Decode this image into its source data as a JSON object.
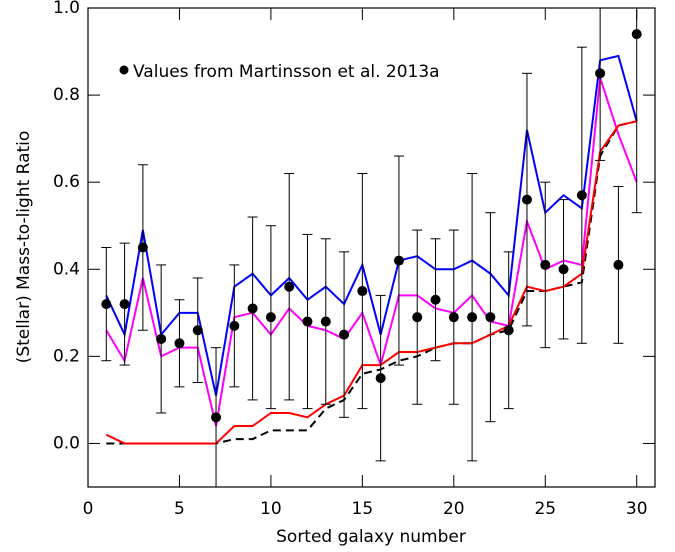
{
  "chart_data": {
    "type": "scatter",
    "xlabel": "Sorted galaxy number",
    "ylabel": "(Stellar) Mass-to-light Ratio",
    "xlim": [
      0,
      31
    ],
    "ylim": [
      -0.1,
      1.0
    ],
    "xticks": [
      0,
      5,
      10,
      15,
      20,
      25,
      30
    ],
    "yticks": [
      {
        "value": 0.0,
        "label": "0.0"
      },
      {
        "value": 0.2,
        "label": "0.2"
      },
      {
        "value": 0.4,
        "label": "0.4"
      },
      {
        "value": 0.6,
        "label": "0.6"
      },
      {
        "value": 0.8,
        "label": "0.8"
      },
      {
        "value": 1.0,
        "label": "1.0"
      }
    ],
    "x": [
      1,
      2,
      3,
      4,
      5,
      6,
      7,
      8,
      9,
      10,
      11,
      12,
      13,
      14,
      15,
      16,
      17,
      18,
      19,
      20,
      21,
      22,
      23,
      24,
      25,
      26,
      27,
      28,
      29,
      30
    ],
    "series": [
      {
        "name": "Values from Martinsson et al. 2013a",
        "color": "#000000",
        "values": [
          0.32,
          0.32,
          0.45,
          0.24,
          0.23,
          0.26,
          0.06,
          0.27,
          0.31,
          0.29,
          0.36,
          0.28,
          0.28,
          0.25,
          0.35,
          0.15,
          0.42,
          0.29,
          0.33,
          0.29,
          0.29,
          0.29,
          0.26,
          0.56,
          0.41,
          0.4,
          0.57,
          0.85,
          0.41,
          0.94
        ],
        "errors": [
          0.13,
          0.14,
          0.19,
          0.17,
          0.1,
          0.12,
          0.16,
          0.14,
          0.21,
          0.21,
          0.26,
          0.2,
          0.19,
          0.19,
          0.27,
          0.19,
          0.24,
          0.2,
          0.14,
          0.2,
          0.33,
          0.24,
          0.18,
          0.29,
          0.19,
          0.16,
          0.34,
          0.2,
          0.18,
          0.41
        ]
      }
    ],
    "lines": [
      {
        "color": "#0000ff",
        "dash": false,
        "values": [
          0.34,
          0.25,
          0.49,
          0.25,
          0.3,
          0.3,
          0.11,
          0.36,
          0.39,
          0.34,
          0.38,
          0.33,
          0.36,
          0.32,
          0.41,
          0.25,
          0.42,
          0.43,
          0.4,
          0.4,
          0.42,
          0.39,
          0.34,
          0.72,
          0.53,
          0.57,
          0.54,
          0.88,
          0.89,
          0.74
        ]
      },
      {
        "color": "#ff00ff",
        "dash": false,
        "values": [
          0.26,
          0.19,
          0.38,
          0.2,
          0.22,
          0.22,
          0.04,
          0.29,
          0.3,
          0.25,
          0.31,
          0.27,
          0.26,
          0.24,
          0.3,
          0.18,
          0.34,
          0.34,
          0.31,
          0.3,
          0.34,
          0.28,
          0.27,
          0.51,
          0.4,
          0.42,
          0.41,
          0.84,
          0.71,
          0.6
        ]
      },
      {
        "color": "#000000",
        "dash": true,
        "values": [
          0.0,
          0.0,
          0.0,
          0.0,
          0.0,
          0.0,
          0.0,
          0.01,
          0.01,
          0.03,
          0.03,
          0.03,
          0.08,
          0.1,
          0.16,
          0.17,
          0.19,
          0.2,
          0.22,
          0.23,
          0.23,
          0.25,
          0.26,
          0.35,
          0.35,
          0.36,
          0.37,
          0.66,
          0.73,
          0.74
        ]
      },
      {
        "color": "#ff0000",
        "dash": false,
        "values": [
          0.02,
          0.0,
          0.0,
          0.0,
          0.0,
          0.0,
          0.0,
          0.04,
          0.04,
          0.07,
          0.07,
          0.06,
          0.09,
          0.11,
          0.18,
          0.18,
          0.21,
          0.21,
          0.22,
          0.23,
          0.23,
          0.25,
          0.27,
          0.36,
          0.35,
          0.36,
          0.39,
          0.67,
          0.73,
          0.74
        ]
      }
    ]
  }
}
